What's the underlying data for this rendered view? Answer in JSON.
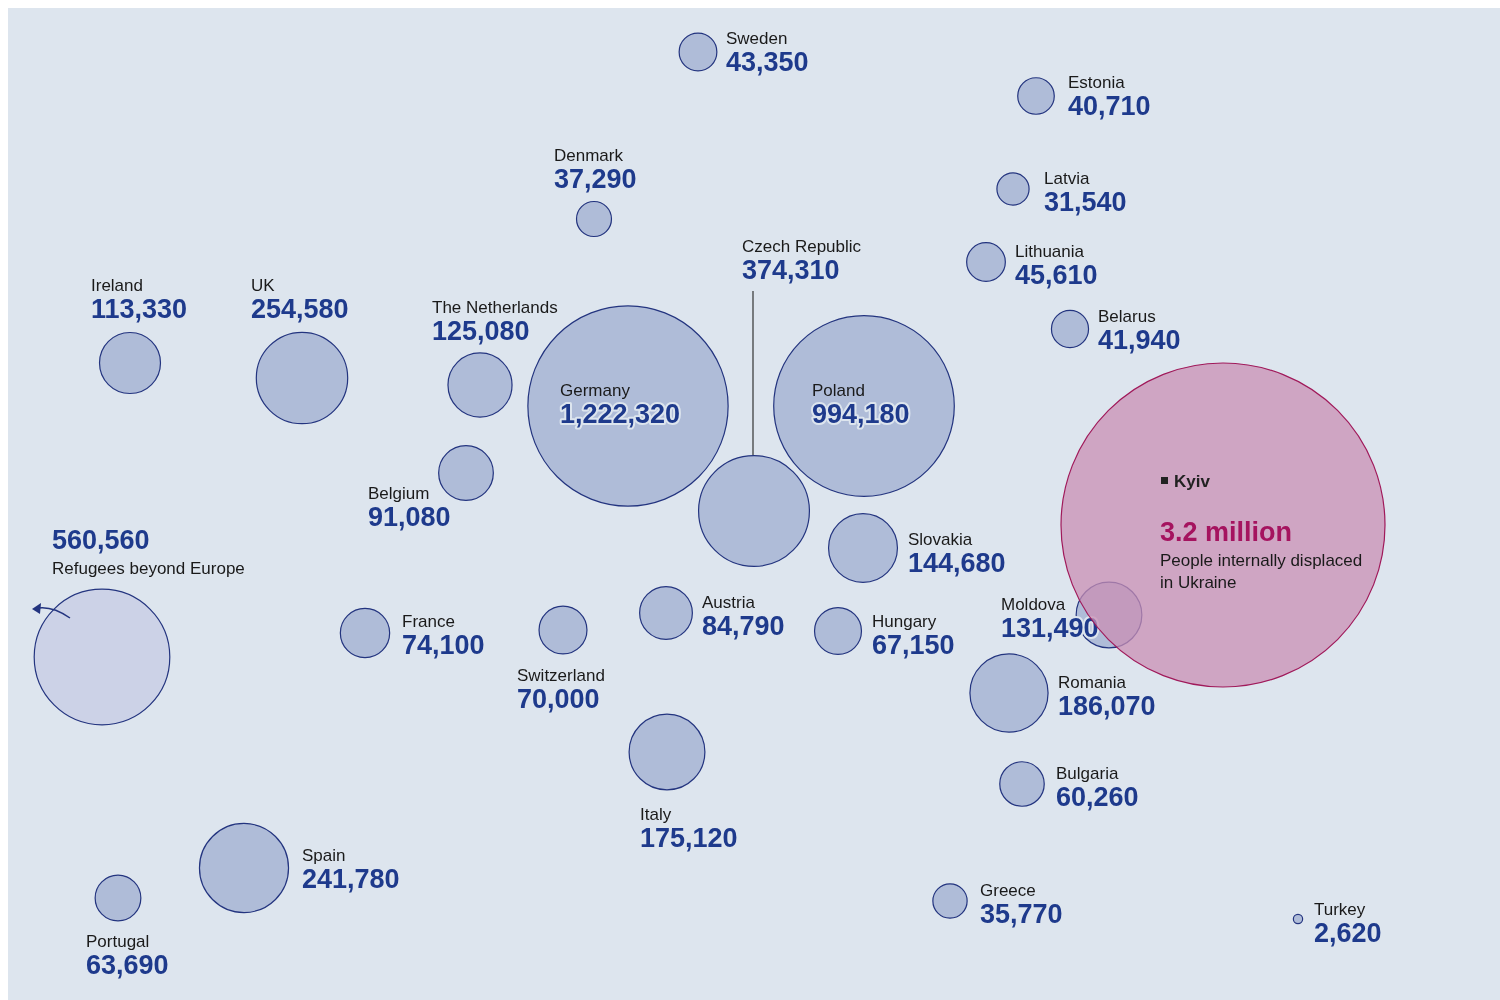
{
  "chart_data": {
    "type": "other",
    "categories": [
      "Sweden",
      "Estonia",
      "Denmark",
      "Latvia",
      "Czech Republic",
      "Lithuania",
      "Ireland",
      "UK",
      "The Netherlands",
      "Belarus",
      "Germany",
      "Poland",
      "Belgium",
      "Slovakia",
      "Moldova",
      "France",
      "Austria",
      "Switzerland",
      "Hungary",
      "Romania",
      "Italy",
      "Bulgaria",
      "Spain",
      "Portugal",
      "Greece",
      "Turkey",
      "Refugees beyond Europe",
      "People internally displaced in Ukraine"
    ],
    "values": [
      43350,
      40710,
      37290,
      31540,
      374310,
      45610,
      113330,
      254580,
      125080,
      41940,
      1222320,
      994180,
      91080,
      144680,
      131490,
      74100,
      84790,
      70000,
      67150,
      186070,
      175120,
      60260,
      241780,
      63690,
      35770,
      2620,
      560560,
      3200000
    ],
    "value_labels": [
      "43,350",
      "40,710",
      "37,290",
      "31,540",
      "374,310",
      "45,610",
      "113,330",
      "254,580",
      "125,080",
      "41,940",
      "1,222,320",
      "994,180",
      "91,080",
      "144,680",
      "131,490",
      "74,100",
      "84,790",
      "70,000",
      "67,150",
      "186,070",
      "175,120",
      "60,260",
      "241,780",
      "63,690",
      "35,770",
      "2,620",
      "560,560",
      "3.2 million"
    ],
    "colors": [
      "#a7b5d3",
      "#a7b5d3",
      "#a7b5d3",
      "#a7b5d3",
      "#a7b5d3",
      "#a7b5d3",
      "#a7b5d3",
      "#a7b5d3",
      "#a7b5d3",
      "#a7b5d3",
      "#a7b5d3",
      "#a7b5d3",
      "#a7b5d3",
      "#a7b5d3",
      "#a7b5d3",
      "#a7b5d3",
      "#a7b5d3",
      "#a7b5d3",
      "#a7b5d3",
      "#a7b5d3",
      "#a7b5d3",
      "#a7b5d3",
      "#a7b5d3",
      "#a7b5d3",
      "#a7b5d3",
      "#a7b5d3",
      "#c9cfe5",
      "#c98fb4"
    ],
    "annotations": [
      "Kyiv"
    ]
  }
}
